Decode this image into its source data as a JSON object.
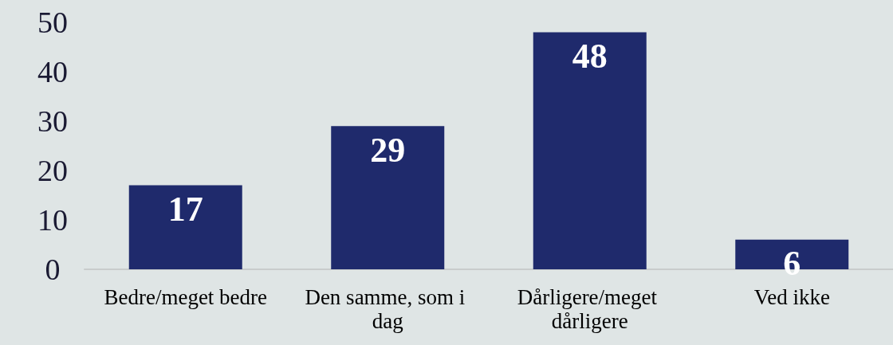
{
  "chart_data": {
    "type": "bar",
    "categories": [
      "Bedre/meget bedre",
      "Den samme, som i dag",
      "Dårligere/meget dårligere",
      "Ved ikke"
    ],
    "values": [
      17,
      29,
      48,
      6
    ],
    "color": "#1f2a6c",
    "ylim": [
      0,
      50
    ],
    "yticks": [
      0,
      10,
      20,
      30,
      40,
      50
    ],
    "grid": false,
    "data_labels": true
  }
}
